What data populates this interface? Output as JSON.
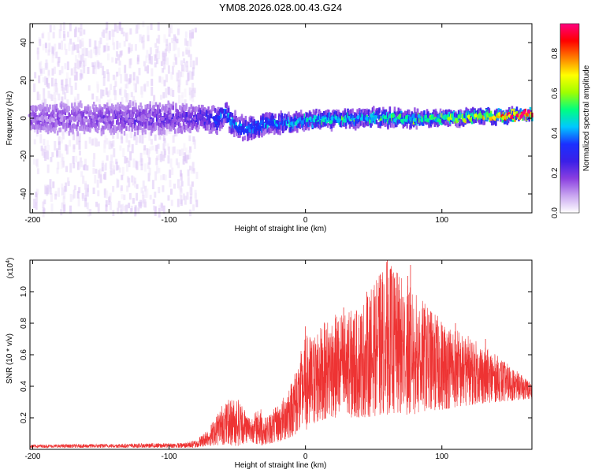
{
  "title": "YM08.2026.028.00.43.G24",
  "chart_data": [
    {
      "type": "heatmap",
      "title": "YM08.2026.028.00.43.G24",
      "xlabel": "Height of straight line (km)",
      "ylabel": "Frequency (Hz)",
      "xlim": [
        -202,
        166
      ],
      "ylim": [
        -50,
        50
      ],
      "x_ticks": [
        -200,
        -100,
        0,
        100
      ],
      "x_tick_labels": [
        "-200",
        "-100",
        "0",
        "100"
      ],
      "y_ticks": [
        -40,
        -20,
        0,
        20,
        40
      ],
      "y_tick_labels": [
        "-40",
        "-20",
        "0",
        "20",
        "40"
      ],
      "colorbar": {
        "label": "Normalized spectral amplitude",
        "range": [
          0.0,
          0.95
        ],
        "ticks": [
          0.0,
          0.2,
          0.4,
          0.6,
          0.8
        ],
        "tick_labels": [
          "0.0",
          "0.2",
          "0.4",
          "0.6",
          "0.8"
        ],
        "colors": [
          "#ffffff",
          "#c9a6f0",
          "#8a3fe0",
          "#3a1fe8",
          "#1a30ff",
          "#00c8ff",
          "#00ff80",
          "#a0ff00",
          "#ffff00",
          "#ff8000",
          "#ff0000",
          "#ff0080"
        ]
      },
      "ridge": {
        "description_values": "main signal band centered near 0 Hz",
        "center_x": [
          -200,
          -150,
          -100,
          -80,
          -65,
          -60,
          -55,
          -45,
          -30,
          -10,
          0,
          50,
          100,
          140,
          160
        ],
        "center_y": [
          0,
          0,
          0,
          0,
          -1,
          4,
          -2,
          -6,
          -3,
          -2,
          -1,
          0,
          0,
          1,
          2
        ],
        "half_width": [
          7,
          7,
          7,
          6,
          6,
          6,
          5,
          5,
          5,
          4,
          4,
          4,
          3,
          3,
          2
        ],
        "peak_amp": [
          0.1,
          0.12,
          0.15,
          0.18,
          0.3,
          0.3,
          0.35,
          0.35,
          0.35,
          0.4,
          0.4,
          0.45,
          0.5,
          0.65,
          0.9
        ]
      },
      "scatter_region": {
        "x_range": [
          -200,
          -80
        ],
        "y_range": [
          -50,
          50
        ],
        "amplitude": 0.05
      }
    },
    {
      "type": "line",
      "title": "",
      "xlabel": "Height of straight line (km)",
      "ylabel": "SNR (10 * v/v)",
      "y_scale_label": "(x10",
      "y_scale_exponent": "4",
      "y_scale_suffix": ")",
      "xlim": [
        -202,
        166
      ],
      "ylim": [
        0.0,
        1.2
      ],
      "x_ticks": [
        -200,
        -100,
        0,
        100
      ],
      "x_tick_labels": [
        "-200",
        "-100",
        "0",
        "100"
      ],
      "y_ticks": [
        0.2,
        0.4,
        0.6,
        0.8,
        1.0
      ],
      "y_tick_labels": [
        "0.2",
        "0.4",
        "0.6",
        "0.8",
        "1.0"
      ],
      "color": "#ee3333",
      "envelope": {
        "x": [
          -202,
          -90,
          -80,
          -70,
          -60,
          -50,
          -40,
          -33,
          -30,
          -18,
          -10,
          0,
          10,
          20,
          40,
          60,
          80,
          100,
          120,
          140,
          166
        ],
        "lower": [
          0.01,
          0.01,
          0.01,
          0.02,
          0.03,
          0.02,
          0.05,
          0.02,
          0.03,
          0.05,
          0.08,
          0.12,
          0.18,
          0.2,
          0.2,
          0.22,
          0.22,
          0.25,
          0.28,
          0.3,
          0.32
        ],
        "upper": [
          0.03,
          0.04,
          0.06,
          0.15,
          0.3,
          0.34,
          0.2,
          0.28,
          0.2,
          0.3,
          0.45,
          0.72,
          0.78,
          0.85,
          0.9,
          1.2,
          1.0,
          0.82,
          0.72,
          0.6,
          0.42
        ]
      },
      "spikes": [
        {
          "x": 0,
          "y": 0.78
        },
        {
          "x": 28,
          "y": 0.9
        },
        {
          "x": 60,
          "y": 1.2
        },
        {
          "x": 75,
          "y": 1.1
        },
        {
          "x": 77,
          "y": 1.17
        },
        {
          "x": 45,
          "y": 1.0
        },
        {
          "x": 110,
          "y": 0.8
        },
        {
          "x": 132,
          "y": 0.7
        }
      ]
    }
  ]
}
